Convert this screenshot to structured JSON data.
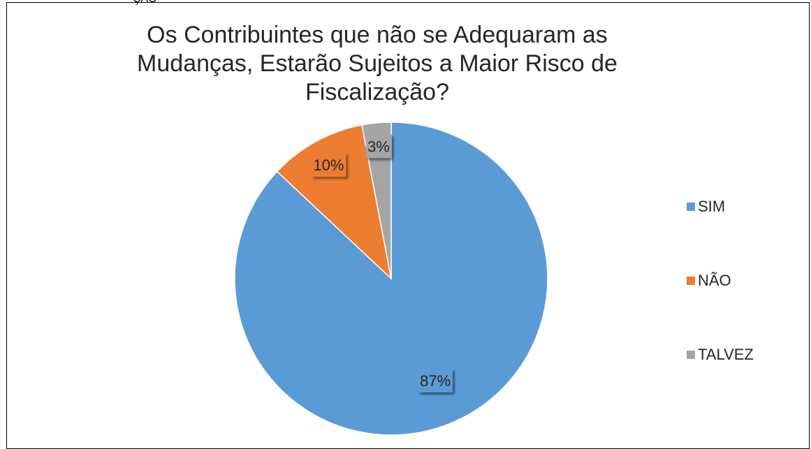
{
  "top_cut_text": "ÇÃO",
  "chart_data": {
    "type": "pie",
    "title_lines": [
      "Os Contribuintes que não se Adequaram as",
      "Mudanças, Estarão Sujeitos a Maior Risco de",
      "Fiscalização?"
    ],
    "categories": [
      "SIM",
      "NÃO",
      "TALVEZ"
    ],
    "values": [
      87,
      10,
      3
    ],
    "data_labels": [
      "87%",
      "10%",
      "3%"
    ],
    "colors": [
      "#5B9BD5",
      "#ED7D31",
      "#A5A5A5"
    ],
    "legend_position": "right",
    "start_angle": "12 o'clock",
    "direction": "clockwise"
  }
}
